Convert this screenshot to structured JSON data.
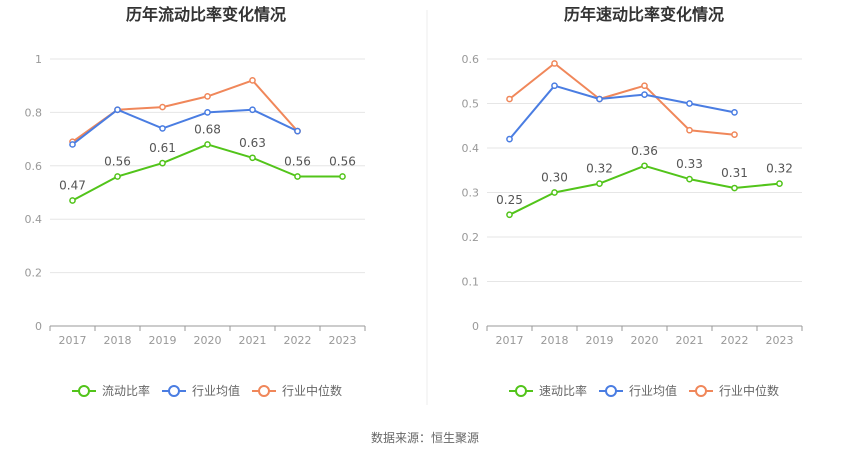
{
  "source_text": "数据来源：恒生聚源",
  "chart_data": [
    {
      "type": "line",
      "title": "历年流动比率变化情况",
      "categories": [
        "2017",
        "2018",
        "2019",
        "2020",
        "2021",
        "2022",
        "2023"
      ],
      "ylim": [
        0,
        1
      ],
      "yticks": [
        "0",
        "0.2",
        "0.4",
        "0.6",
        "0.8",
        "1"
      ],
      "grid": true,
      "legend_position": "bottom",
      "series": [
        {
          "name": "流动比率",
          "color": "#52c41a",
          "values": [
            0.47,
            0.56,
            0.61,
            0.68,
            0.63,
            0.56,
            0.56
          ],
          "labels": [
            "0.47",
            "0.56",
            "0.61",
            "0.68",
            "0.63",
            "0.56",
            "0.56"
          ]
        },
        {
          "name": "行业均值",
          "color": "#4a7de2",
          "values": [
            0.68,
            0.81,
            0.74,
            0.8,
            0.81,
            0.73,
            null
          ]
        },
        {
          "name": "行业中位数",
          "color": "#f0875a",
          "values": [
            0.69,
            0.81,
            0.82,
            0.86,
            0.92,
            0.73,
            null
          ]
        }
      ]
    },
    {
      "type": "line",
      "title": "历年速动比率变化情况",
      "categories": [
        "2017",
        "2018",
        "2019",
        "2020",
        "2021",
        "2022",
        "2023"
      ],
      "ylim": [
        0,
        0.6
      ],
      "yticks": [
        "0",
        "0.1",
        "0.2",
        "0.3",
        "0.4",
        "0.5",
        "0.6"
      ],
      "grid": true,
      "legend_position": "bottom",
      "series": [
        {
          "name": "速动比率",
          "color": "#52c41a",
          "values": [
            0.25,
            0.3,
            0.32,
            0.36,
            0.33,
            0.31,
            0.32
          ],
          "labels": [
            "0.25",
            "0.30",
            "0.32",
            "0.36",
            "0.33",
            "0.31",
            "0.32"
          ]
        },
        {
          "name": "行业均值",
          "color": "#4a7de2",
          "values": [
            0.42,
            0.54,
            0.51,
            0.52,
            0.5,
            0.48,
            null
          ]
        },
        {
          "name": "行业中位数",
          "color": "#f0875a",
          "values": [
            0.51,
            0.59,
            0.51,
            0.54,
            0.44,
            0.43,
            null
          ]
        }
      ]
    }
  ]
}
